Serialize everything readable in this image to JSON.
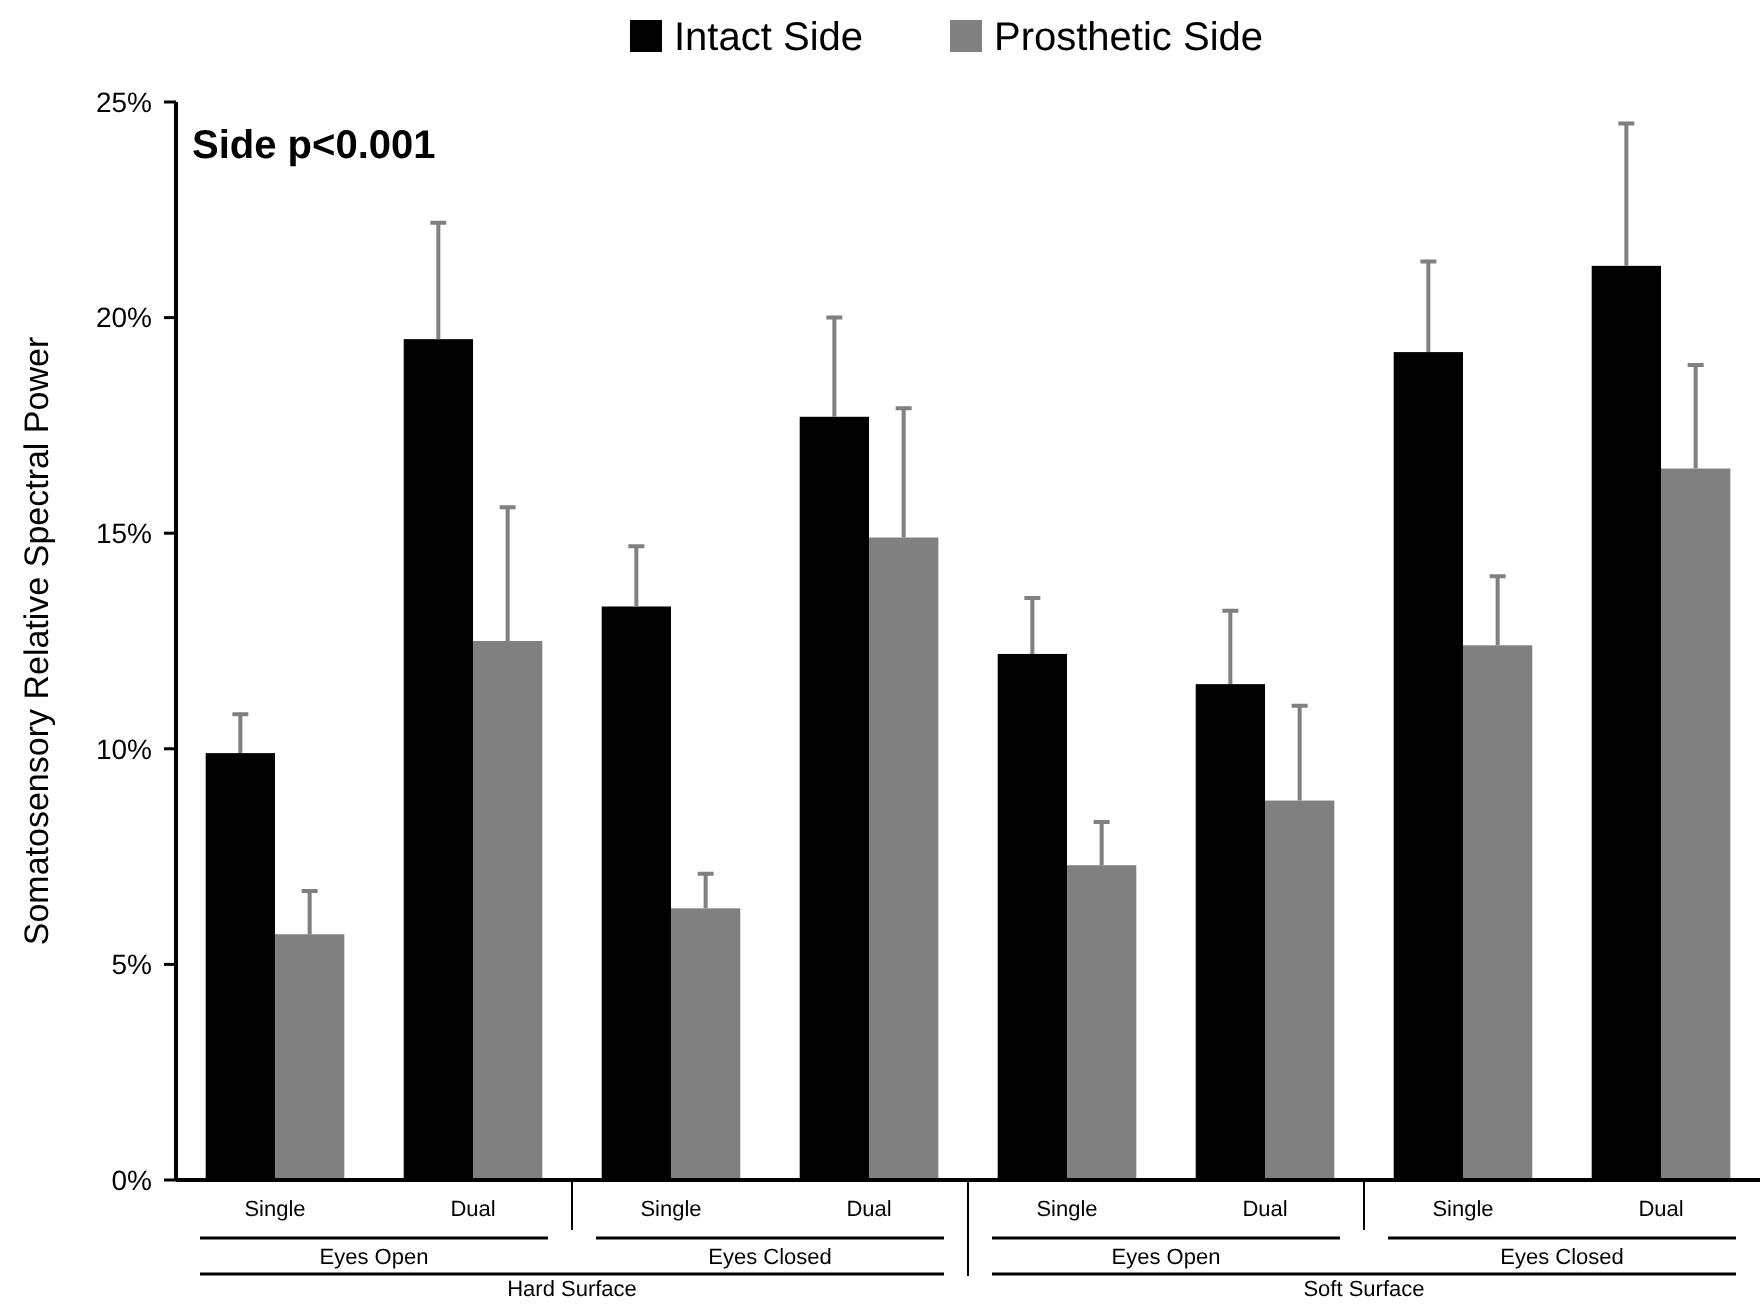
{
  "chart_data": {
    "type": "bar",
    "ylabel": "Somatosensory Relative Spectral Power",
    "categories": [
      "Single",
      "Dual",
      "Single",
      "Dual",
      "Single",
      "Dual",
      "Single",
      "Dual"
    ],
    "series": [
      {
        "name": "Intact Side",
        "color": "#000000",
        "values": [
          9.9,
          19.5,
          13.3,
          17.7,
          12.2,
          11.5,
          19.2,
          21.2
        ],
        "errors": [
          [
            9.9,
            10.8
          ],
          [
            19.5,
            22.2
          ],
          [
            13.3,
            14.7
          ],
          [
            17.7,
            20.0
          ],
          [
            12.2,
            13.5
          ],
          [
            11.5,
            13.2
          ],
          [
            19.2,
            21.3
          ],
          [
            21.2,
            24.5
          ]
        ]
      },
      {
        "name": "Prosthetic Side",
        "color": "#808080",
        "values": [
          5.7,
          12.5,
          6.3,
          14.9,
          7.3,
          8.8,
          12.4,
          16.5
        ],
        "errors": [
          [
            5.7,
            6.7
          ],
          [
            12.5,
            15.6
          ],
          [
            6.3,
            7.1
          ],
          [
            14.9,
            17.9
          ],
          [
            7.3,
            8.3
          ],
          [
            8.8,
            11.0
          ],
          [
            12.4,
            14.0
          ],
          [
            16.5,
            18.9
          ]
        ]
      }
    ],
    "ylim": [
      0,
      25
    ],
    "yticks": [
      {
        "value": 0,
        "label": "0%"
      },
      {
        "value": 5,
        "label": "5%"
      },
      {
        "value": 10,
        "label": "10%"
      },
      {
        "value": 15,
        "label": "15%"
      },
      {
        "value": 20,
        "label": "20%"
      },
      {
        "value": 25,
        "label": "25%"
      }
    ],
    "legend": "top",
    "annotations": [
      "Side p<0.001",
      "Eyes Open",
      "Eyes Closed",
      "Eyes Open",
      "Eyes Closed",
      "Hard Surface",
      "Soft Surface"
    ]
  }
}
